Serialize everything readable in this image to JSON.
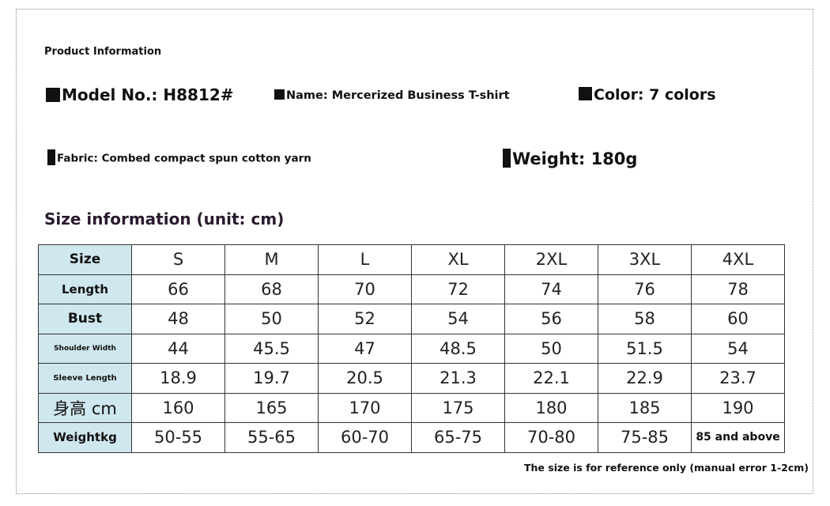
{
  "product_info": {
    "heading": "Product Information",
    "model": "Model No.: H8812#",
    "name": "Name: Mercerized Business T-shirt",
    "color": "Color: 7 colors",
    "fabric": "Fabric: Combed compact spun cotton yarn",
    "weight": "Weight: 180g"
  },
  "size_info": {
    "heading": "Size information (unit: cm)",
    "rows": [
      {
        "label": "Size",
        "values": [
          "S",
          "M",
          "L",
          "XL",
          "2XL",
          "3XL",
          "4XL"
        ]
      },
      {
        "label": "Length",
        "values": [
          "66",
          "68",
          "70",
          "72",
          "74",
          "76",
          "78"
        ]
      },
      {
        "label": "Bust",
        "values": [
          "48",
          "50",
          "52",
          "54",
          "56",
          "58",
          "60"
        ]
      },
      {
        "label": "Shoulder Width",
        "values": [
          "44",
          "45.5",
          "47",
          "48.5",
          "50",
          "51.5",
          "54"
        ]
      },
      {
        "label": "Sleeve Length",
        "values": [
          "18.9",
          "19.7",
          "20.5",
          "21.3",
          "22.1",
          "22.9",
          "23.7"
        ]
      },
      {
        "label": "身高 cm",
        "values": [
          "160",
          "165",
          "170",
          "175",
          "180",
          "185",
          "190"
        ]
      },
      {
        "label": "Weightkg",
        "values": [
          "50-55",
          "55-65",
          "60-70",
          "65-75",
          "70-80",
          "75-85",
          "85 and above"
        ]
      }
    ],
    "note": "The size is for reference only (manual error 1-2cm)"
  },
  "colors": {
    "label_cell_bg": "#cfe7ee"
  }
}
